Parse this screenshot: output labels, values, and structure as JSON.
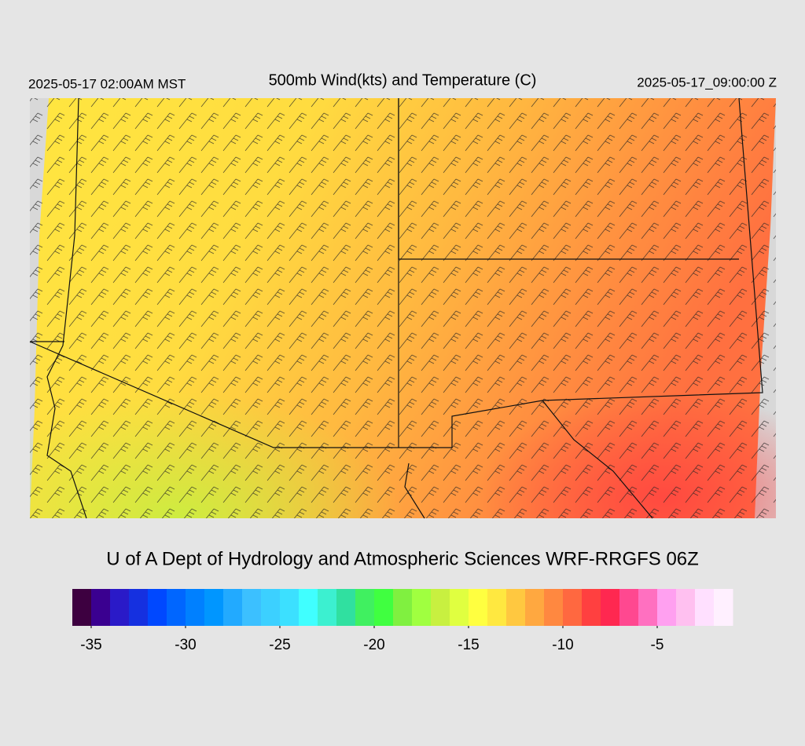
{
  "header": {
    "left": "2025-05-17 02:00AM MST",
    "title": "500mb Wind(kts) and Temperature (C)",
    "right": "2025-05-17_09:00:00 Z"
  },
  "credit": "U of A Dept of Hydrology and Atmospheric Sciences WRF-RRGFS 06Z",
  "colorbar": {
    "range": [
      -36,
      -1
    ],
    "ticks": [
      -35,
      -30,
      -25,
      -20,
      -15,
      -10,
      -5
    ],
    "colors": [
      "#3d0040",
      "#3a0090",
      "#2a1ac8",
      "#1530e0",
      "#0048ff",
      "#0066ff",
      "#0080ff",
      "#0096ff",
      "#22aaff",
      "#3cc0ff",
      "#3cd0ff",
      "#3ce0ff",
      "#40ffff",
      "#3cf0d0",
      "#30e0a0",
      "#40f060",
      "#40ff40",
      "#80f040",
      "#a0ff40",
      "#c8f040",
      "#e0ff40",
      "#ffff40",
      "#ffe840",
      "#ffc840",
      "#ffa840",
      "#ff8840",
      "#ff6840",
      "#ff4040",
      "#ff2850",
      "#ff4890",
      "#ff70c0",
      "#ffa0f0",
      "#ffc0f0",
      "#ffe0ff",
      "#fff0ff"
    ]
  }
}
